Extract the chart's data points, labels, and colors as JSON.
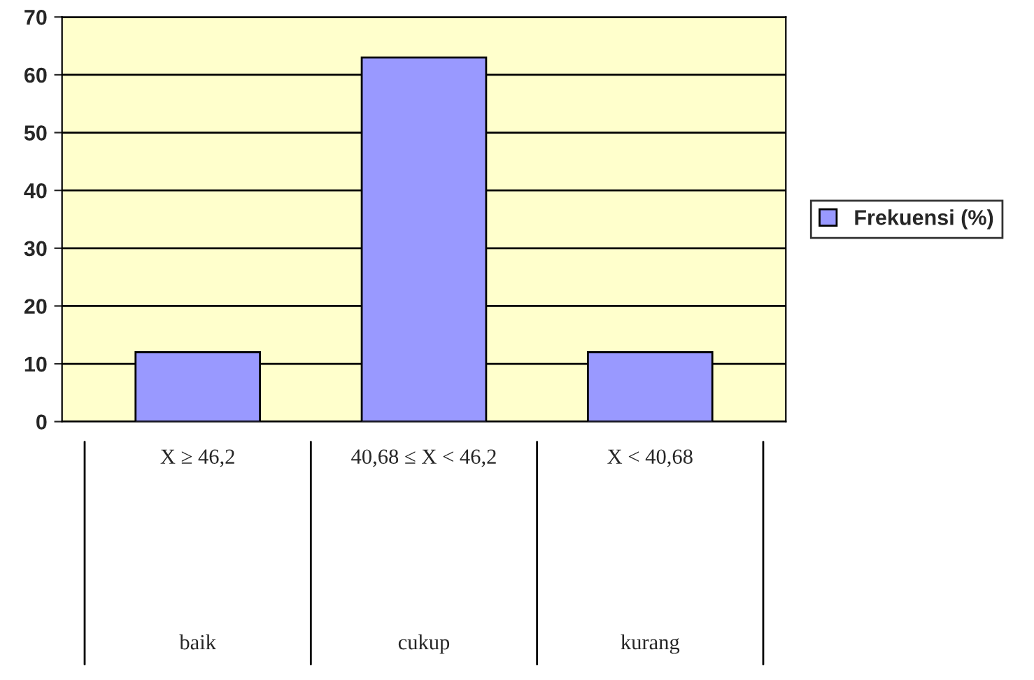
{
  "chart_data": {
    "type": "bar",
    "categories": [
      "X ≥ 46,2",
      "40,68 ≤ X < 46,2",
      "X < 40,68"
    ],
    "series": [
      {
        "name": "Frekuensi (%)",
        "color": "#9999ff",
        "values": [
          12,
          63,
          12
        ]
      }
    ],
    "annotations": [
      "baik",
      "cukup",
      "kurang"
    ],
    "ylim": [
      0,
      70
    ],
    "yticks": [
      0,
      10,
      20,
      30,
      40,
      50,
      60,
      70
    ],
    "grid": "y",
    "legend": "right"
  }
}
